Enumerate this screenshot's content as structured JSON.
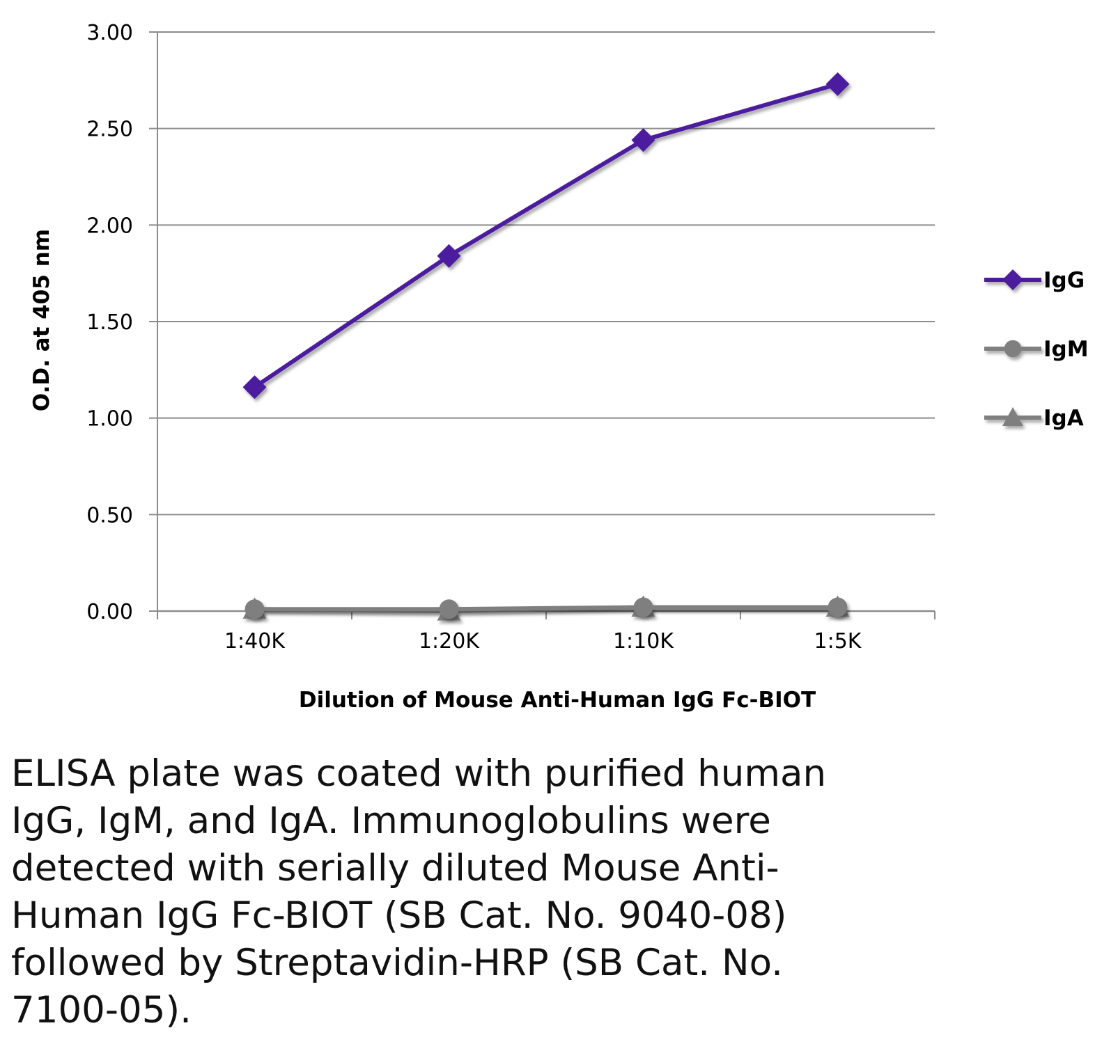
{
  "chart_data": {
    "type": "line",
    "title": "",
    "xlabel": "Dilution of Mouse Anti-Human IgG Fc-BIOT",
    "ylabel": "O.D. at 405 nm",
    "categories": [
      "1:40K",
      "1:20K",
      "1:10K",
      "1:5K"
    ],
    "ylim": [
      0,
      3
    ],
    "yticks": [
      "0.00",
      "0.50",
      "1.00",
      "1.50",
      "2.00",
      "2.50",
      "3.00"
    ],
    "grid": true,
    "legend_position": "right",
    "series": [
      {
        "name": "IgG",
        "color": "#4B1A9E",
        "marker": "diamond",
        "values": [
          1.16,
          1.84,
          2.44,
          2.73
        ]
      },
      {
        "name": "IgM",
        "color": "#7F7F7F",
        "marker": "circle",
        "values": [
          0.01,
          0.01,
          0.02,
          0.02
        ]
      },
      {
        "name": "IgA",
        "color": "#7F7F7F",
        "marker": "triangle",
        "values": [
          0.01,
          0.0,
          0.02,
          0.02
        ]
      }
    ]
  },
  "caption": "ELISA plate was coated with purified human\nIgG, IgM, and IgA.  Immunoglobulins were\ndetected with serially diluted Mouse Anti-\nHuman IgG Fc-BIOT (SB Cat. No. 9040-08)\nfollowed by Streptavidin-HRP (SB Cat. No.\n7100-05)."
}
